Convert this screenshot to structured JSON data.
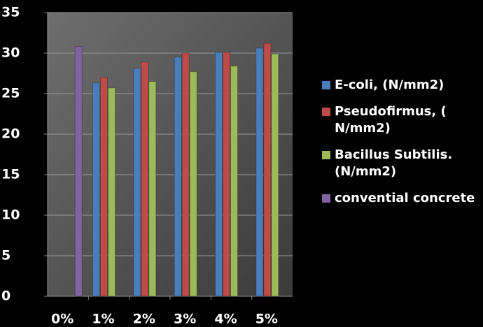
{
  "chart_data": {
    "type": "bar",
    "categories": [
      "0%",
      "1%",
      "2%",
      "3%",
      "4%",
      "5%"
    ],
    "series": [
      {
        "name": "E-coli,  (N/mm2)",
        "color": "#4a7ebb",
        "values": [
          null,
          26.3,
          28.1,
          29.5,
          30.1,
          30.6
        ]
      },
      {
        "name": "Pseudofirmus, ( N/mm2)",
        "color": "#be4b48",
        "values": [
          null,
          27,
          28.9,
          30,
          30.1,
          31.2
        ]
      },
      {
        "name": "Bacillus Subtilis. (N/mm2)",
        "color": "#9bbb59",
        "values": [
          null,
          25.7,
          26.5,
          27.7,
          28.4,
          29.9
        ]
      },
      {
        "name": "convential concrete",
        "color": "#8064a2",
        "values": [
          30.8,
          null,
          null,
          null,
          null,
          null
        ]
      }
    ],
    "ylim": [
      0,
      35
    ],
    "yticks": [
      0,
      5,
      10,
      15,
      20,
      25,
      30,
      35
    ],
    "grid": true,
    "legend": "right"
  }
}
